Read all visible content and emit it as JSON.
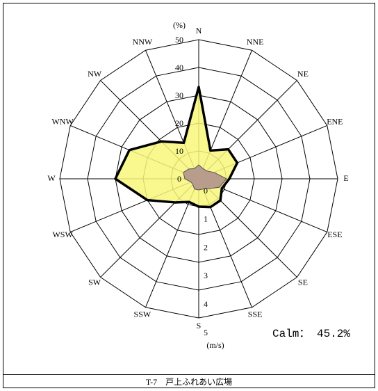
{
  "chart_data": {
    "type": "wind_rose",
    "categories": [
      "N",
      "NNE",
      "NE",
      "ENE",
      "E",
      "ESE",
      "SE",
      "SSE",
      "S",
      "SSW",
      "SW",
      "WSW",
      "W",
      "WNW",
      "NW",
      "NNW"
    ],
    "series": [
      {
        "color": "#f7f77a",
        "values": [
          33,
          11,
          15,
          15,
          11,
          9,
          11,
          11,
          10,
          9,
          12,
          20,
          30,
          27,
          19,
          14
        ]
      },
      {
        "color": "#b89c8c",
        "axis": "speed",
        "values": [
          0.5,
          0.4,
          0.4,
          0.6,
          1.0,
          0.8,
          0.5,
          0.4,
          0.4,
          0.4,
          0.3,
          0.3,
          0.5,
          0.6,
          0.5,
          0.4
        ]
      }
    ],
    "rlim": [
      0,
      50
    ],
    "rticks": [
      0,
      10,
      20,
      30,
      40,
      50
    ],
    "r_label": "(%)",
    "speed_lim": [
      0,
      5
    ],
    "speed_ticks": [
      0,
      1,
      2,
      3,
      4,
      5
    ],
    "speed_label": "(m/s)",
    "annotation": "Calm： 45.2%",
    "caption": "T-7　戸上ふれあい広場"
  }
}
